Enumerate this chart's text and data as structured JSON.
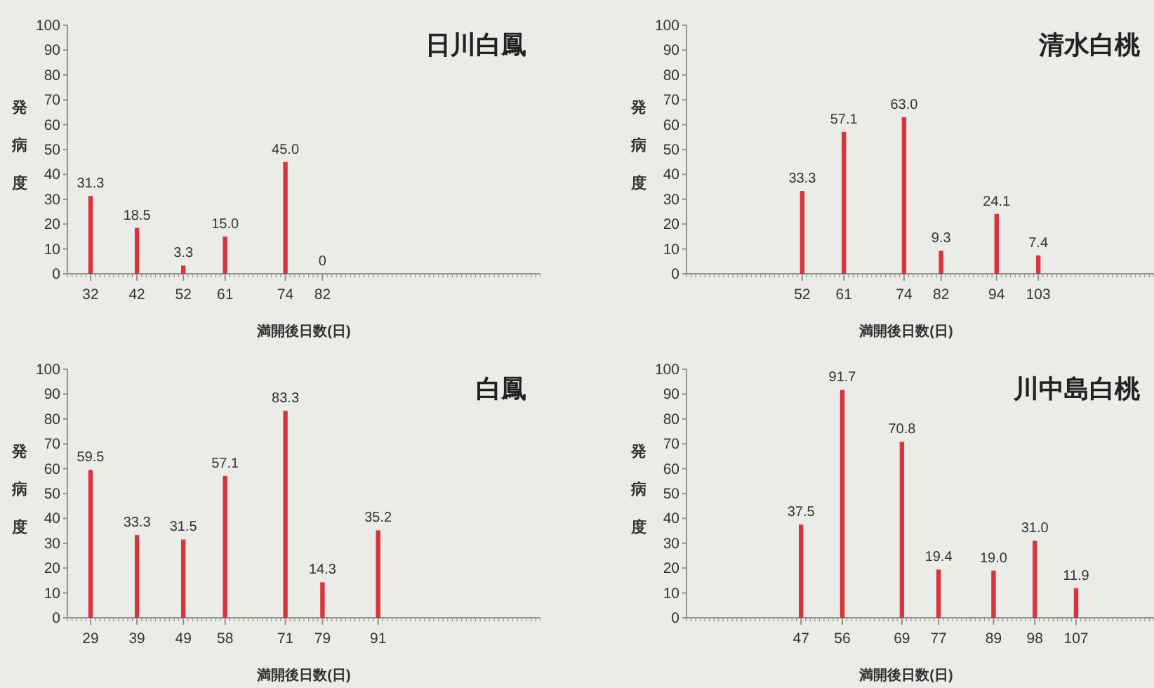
{
  "chart_data": [
    {
      "type": "bar",
      "title": "日川白鳳",
      "xlabel": "満開後日数(日)",
      "ylabel": "発病度",
      "x": [
        32,
        42,
        52,
        61,
        74,
        82
      ],
      "values": [
        31.3,
        18.5,
        3.3,
        15.0,
        45.0,
        0
      ],
      "value_labels": [
        "31.3",
        "18.5",
        "3.3",
        "15.0",
        "45.0",
        "0"
      ],
      "color": "#d8343c",
      "xlim": [
        27,
        129
      ],
      "xticks": [
        32,
        42,
        52,
        61,
        74,
        82
      ],
      "ylim": [
        0,
        100
      ],
      "yticks": [
        0,
        10,
        20,
        30,
        40,
        50,
        60,
        70,
        80,
        90,
        100
      ]
    },
    {
      "type": "bar",
      "title": "清水白桃",
      "xlabel": "満開後日数(日)",
      "ylabel": "発病度",
      "x": [
        52,
        61,
        74,
        82,
        94,
        103
      ],
      "values": [
        33.3,
        57.1,
        63.0,
        9.3,
        24.1,
        7.4
      ],
      "value_labels": [
        "33.3",
        "57.1",
        "63.0",
        "9.3",
        "24.1",
        "7.4"
      ],
      "color": "#d8343c",
      "xlim": [
        27,
        128
      ],
      "xticks": [
        52,
        61,
        74,
        82,
        94,
        103
      ],
      "ylim": [
        0,
        100
      ],
      "yticks": [
        0,
        10,
        20,
        30,
        40,
        50,
        60,
        70,
        80,
        90,
        100
      ]
    },
    {
      "type": "bar",
      "title": "白鳳",
      "xlabel": "満開後日数(日)",
      "ylabel": "発病度",
      "x": [
        29,
        39,
        49,
        58,
        71,
        79,
        91
      ],
      "values": [
        59.5,
        33.3,
        31.5,
        57.1,
        83.3,
        14.3,
        35.2
      ],
      "value_labels": [
        "59.5",
        "33.3",
        "31.5",
        "57.1",
        "83.3",
        "14.3",
        "35.2"
      ],
      "color": "#d8343c",
      "xlim": [
        24,
        126
      ],
      "xticks": [
        29,
        39,
        49,
        58,
        71,
        79,
        91
      ],
      "ylim": [
        0,
        100
      ],
      "yticks": [
        0,
        10,
        20,
        30,
        40,
        50,
        60,
        70,
        80,
        90,
        100
      ]
    },
    {
      "type": "bar",
      "title": "川中島白桃",
      "xlabel": "満開後日数(日)",
      "ylabel": "発病度",
      "x": [
        47,
        56,
        69,
        77,
        89,
        98,
        107
      ],
      "values": [
        37.5,
        91.7,
        70.8,
        19.4,
        19.0,
        31.0,
        11.9
      ],
      "value_labels": [
        "37.5",
        "91.7",
        "70.8",
        "19.4",
        "19.0",
        "31.0",
        "11.9"
      ],
      "color": "#d8343c",
      "xlim": [
        22,
        124
      ],
      "xticks": [
        47,
        56,
        69,
        77,
        89,
        98,
        107
      ],
      "ylim": [
        0,
        100
      ],
      "yticks": [
        0,
        10,
        20,
        30,
        40,
        50,
        60,
        70,
        80,
        90,
        100
      ]
    }
  ]
}
